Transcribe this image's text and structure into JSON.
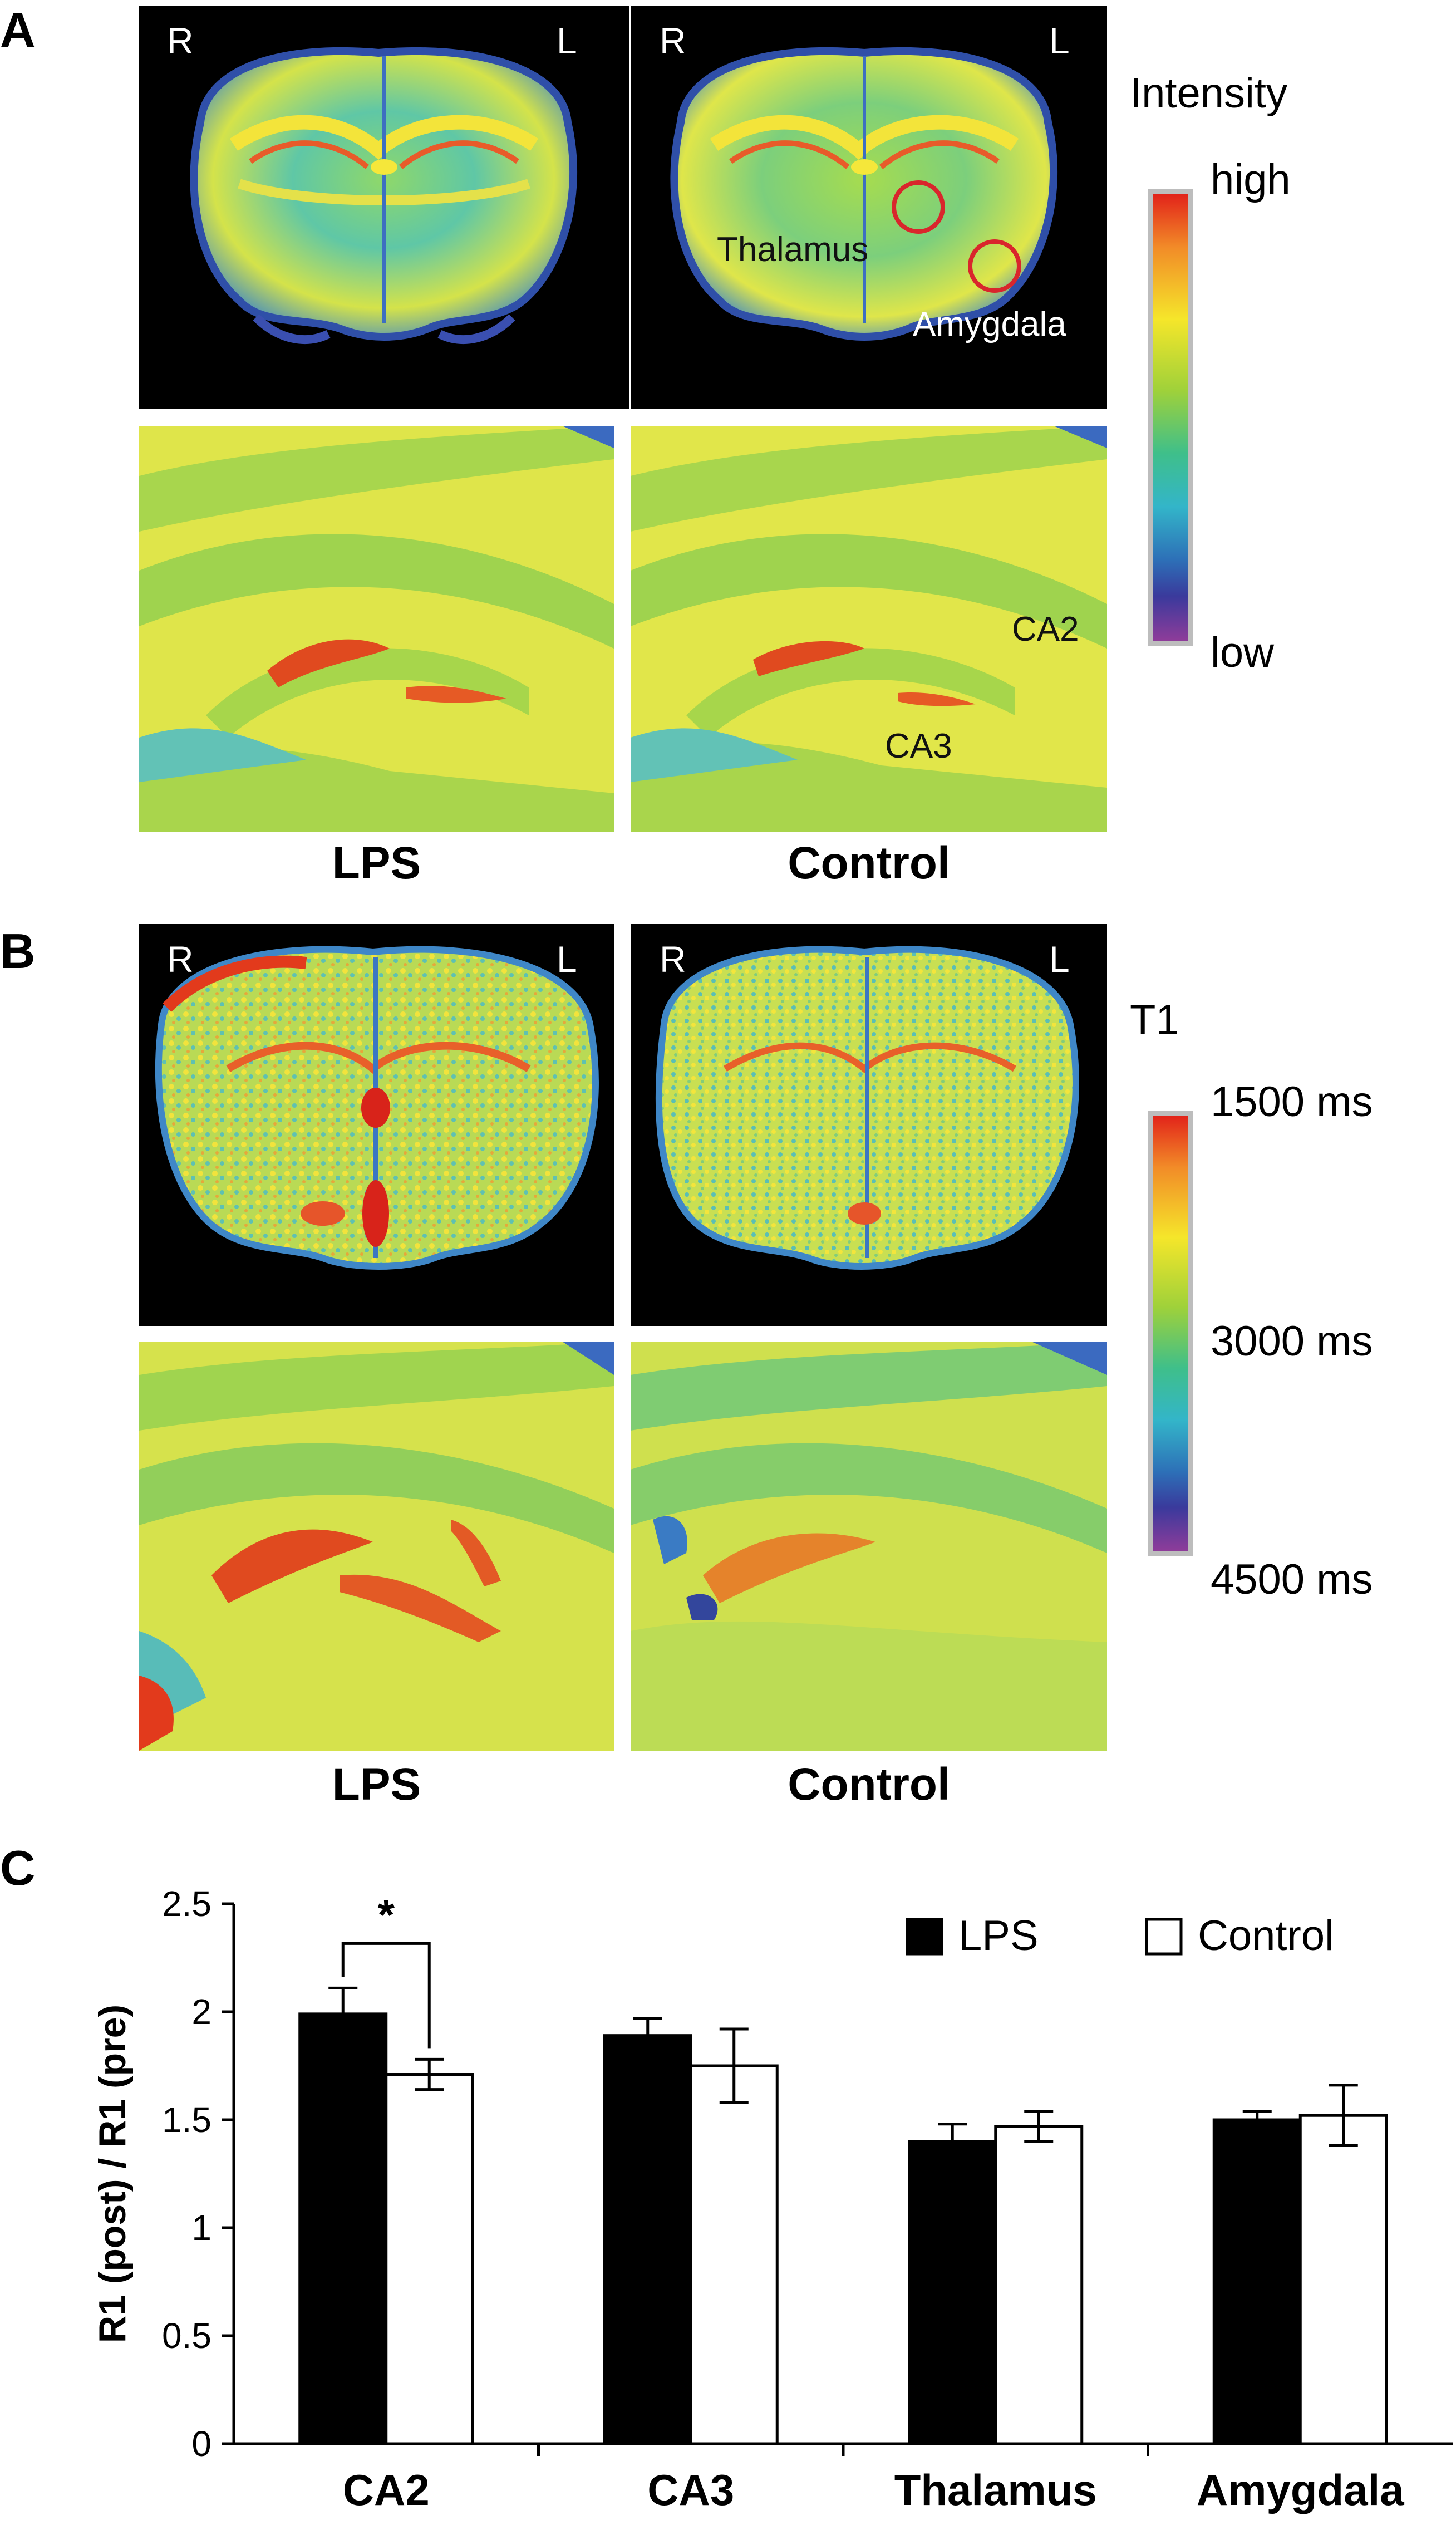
{
  "panels": {
    "a": {
      "letter": "A",
      "orient_right": "R",
      "orient_left": "L",
      "scale_title": "Intensity",
      "scale_top": "high",
      "scale_bottom": "low",
      "roi_thalamus": "Thalamus",
      "roi_amygdala": "Amygdala",
      "region_ca2": "CA2",
      "region_ca3": "CA3",
      "condition_left": "LPS",
      "condition_right": "Control"
    },
    "b": {
      "letter": "B",
      "orient_right": "R",
      "orient_left": "L",
      "scale_title": "T1",
      "scale_top": "1500 ms",
      "scale_mid": "3000 ms",
      "scale_bottom": "4500 ms",
      "condition_left": "LPS",
      "condition_right": "Control"
    },
    "c": {
      "letter": "C"
    }
  },
  "colors": {
    "roi_circle": "#d9262c",
    "lps_bar": "#000000",
    "control_bar": "#ffffff"
  },
  "chart_data": {
    "type": "bar",
    "categories": [
      "CA2",
      "CA3",
      "Thalamus",
      "Amygdala"
    ],
    "ylabel": "R1 (post) / R1 (pre)",
    "xlabel": "",
    "ylim": [
      0,
      2.5
    ],
    "yticks": [
      "0",
      "0.5",
      "1",
      "1.5",
      "2",
      "2.5"
    ],
    "legend_position": "top-right",
    "series": [
      {
        "name": "LPS",
        "values": [
          1.99,
          1.89,
          1.4,
          1.5
        ],
        "errors": [
          0.12,
          0.08,
          0.08,
          0.04
        ]
      },
      {
        "name": "Control",
        "values": [
          1.71,
          1.75,
          1.47,
          1.52
        ],
        "errors": [
          0.07,
          0.17,
          0.07,
          0.14
        ]
      }
    ],
    "annotations": [
      {
        "text": "*",
        "between": [
          "CA2 LPS",
          "CA2 Control"
        ]
      }
    ]
  }
}
